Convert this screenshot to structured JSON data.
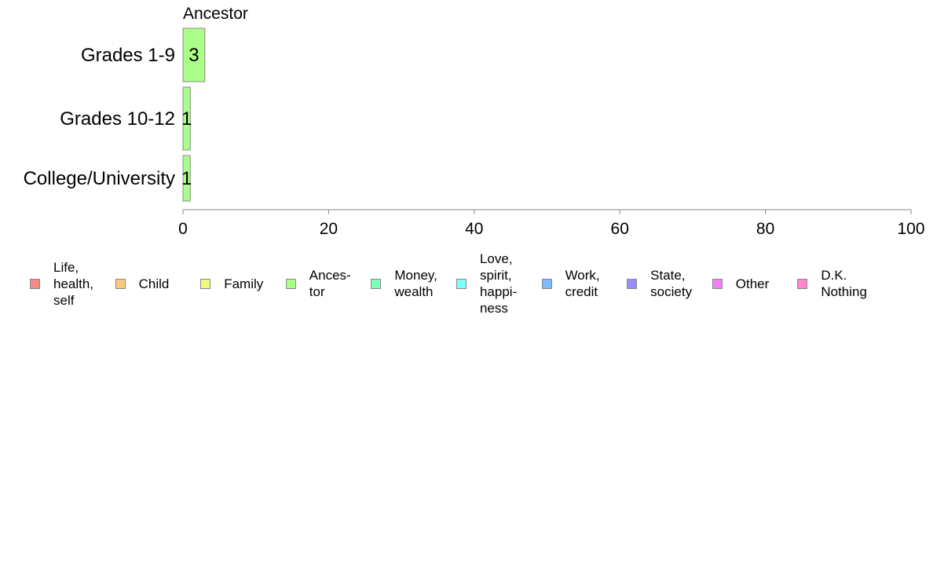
{
  "chart_data": {
    "type": "bar",
    "orientation": "horizontal",
    "stacked": true,
    "panel_label": "Ancestor",
    "categories": [
      "Grades 1-9",
      "Grades 10-12",
      "College/University"
    ],
    "series": [
      {
        "name": "Ances-\ntor",
        "color": "#aaff88",
        "values": [
          3,
          1,
          1
        ]
      }
    ],
    "data_labels": [
      "3",
      "1",
      "1"
    ],
    "xlim": [
      0,
      100
    ],
    "xticks": [
      0,
      20,
      40,
      60,
      80,
      100
    ],
    "grid": false,
    "legend_position": "bottom",
    "legend": [
      {
        "label": "Life,\nhealth,\nself",
        "color": "#f58a8a"
      },
      {
        "label": "Child",
        "color": "#fcc67f"
      },
      {
        "label": "Family",
        "color": "#eef97f"
      },
      {
        "label": "Ances-\ntor",
        "color": "#aaff88"
      },
      {
        "label": "Money,\nwealth",
        "color": "#80fbbc"
      },
      {
        "label": "Love,\nspirit,\nhappi-\nness",
        "color": "#80fcfc"
      },
      {
        "label": "Work,\ncredit",
        "color": "#80b9fd"
      },
      {
        "label": "State,\nsociety",
        "color": "#9a8bfb"
      },
      {
        "label": "Other",
        "color": "#ef80f6"
      },
      {
        "label": "D.K.\nNothing",
        "color": "#fb88cf"
      }
    ]
  }
}
